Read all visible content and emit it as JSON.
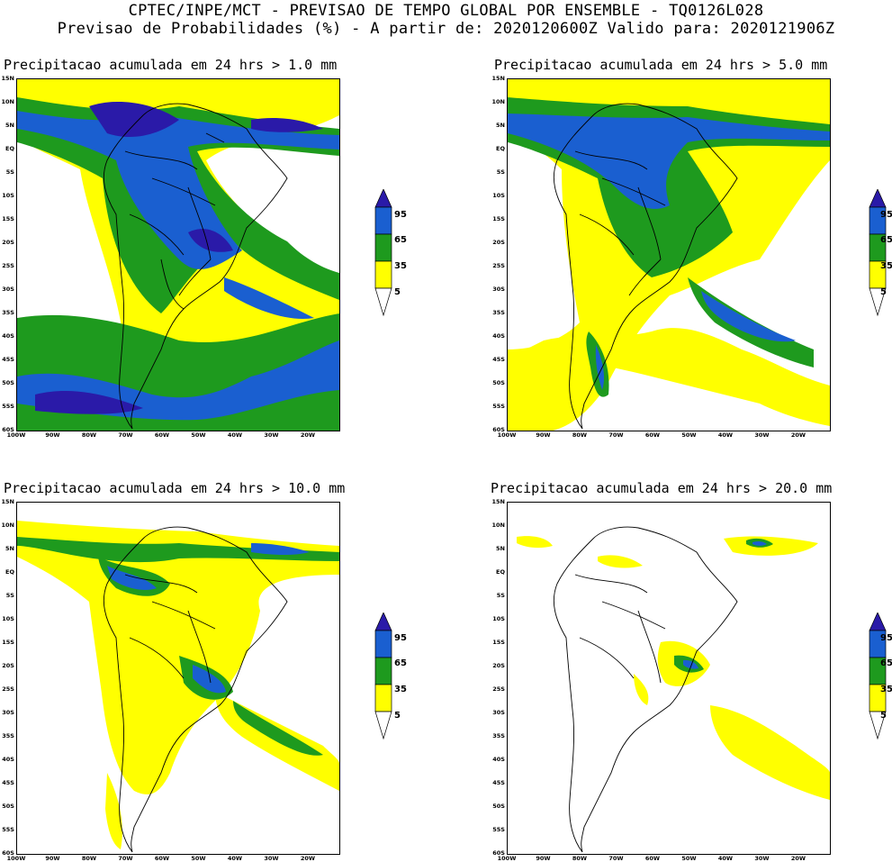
{
  "header": {
    "line1": "CPTEC/INPE/MCT - PREVISAO DE TEMPO GLOBAL POR ENSEMBLE - TQ0126L028",
    "line2": "Previsao de Probabilidades (%) -  A partir de: 2020120600Z  Valido para: 2020121906Z"
  },
  "axes": {
    "lat_labels": [
      "15N",
      "10N",
      "5N",
      "EQ",
      "5S",
      "10S",
      "15S",
      "20S",
      "25S",
      "30S",
      "35S",
      "40S",
      "45S",
      "50S",
      "55S",
      "60S"
    ],
    "lon_labels": [
      "100W",
      "90W",
      "80W",
      "70W",
      "60W",
      "50W",
      "40W",
      "30W",
      "20W"
    ]
  },
  "legend": {
    "ticks": [
      "95",
      "65",
      "35",
      "5"
    ],
    "colors": {
      "95": "#2a1aa8",
      "65": "#1a5fd0",
      "35": "#1e9a1e",
      "5": "#ffff00"
    }
  },
  "panels": [
    {
      "title": "Precipitacao acumulada em 24 hrs > 1.0 mm"
    },
    {
      "title": "Precipitacao acumulada em 24 hrs > 5.0 mm"
    },
    {
      "title": "Precipitacao acumulada em 24 hrs > 10.0 mm"
    },
    {
      "title": "Precipitacao acumulada em 24 hrs > 20.0 mm"
    }
  ]
}
